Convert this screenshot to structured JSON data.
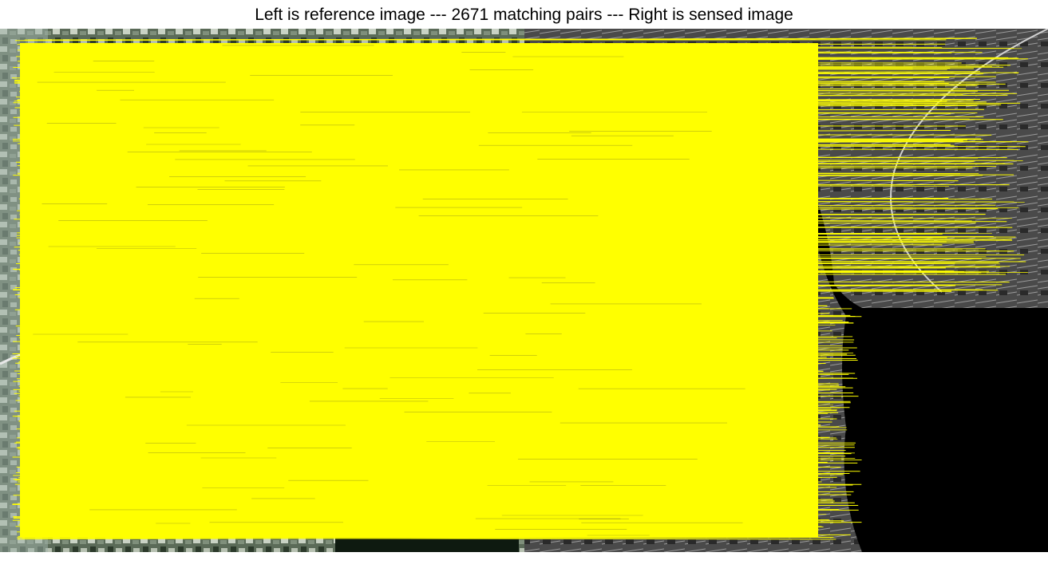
{
  "figure": {
    "title": "Left is reference image --- 2671 matching pairs --- Right is sensed image"
  },
  "matches": {
    "count": 2671,
    "line_color": "#ffff00"
  },
  "colors": {
    "background": "#ffffff",
    "title_text": "#000000",
    "land_dark": "#2f3430",
    "land_light": "#8d9a8c",
    "water": "#000000",
    "field_green": "#3d5a3a"
  }
}
